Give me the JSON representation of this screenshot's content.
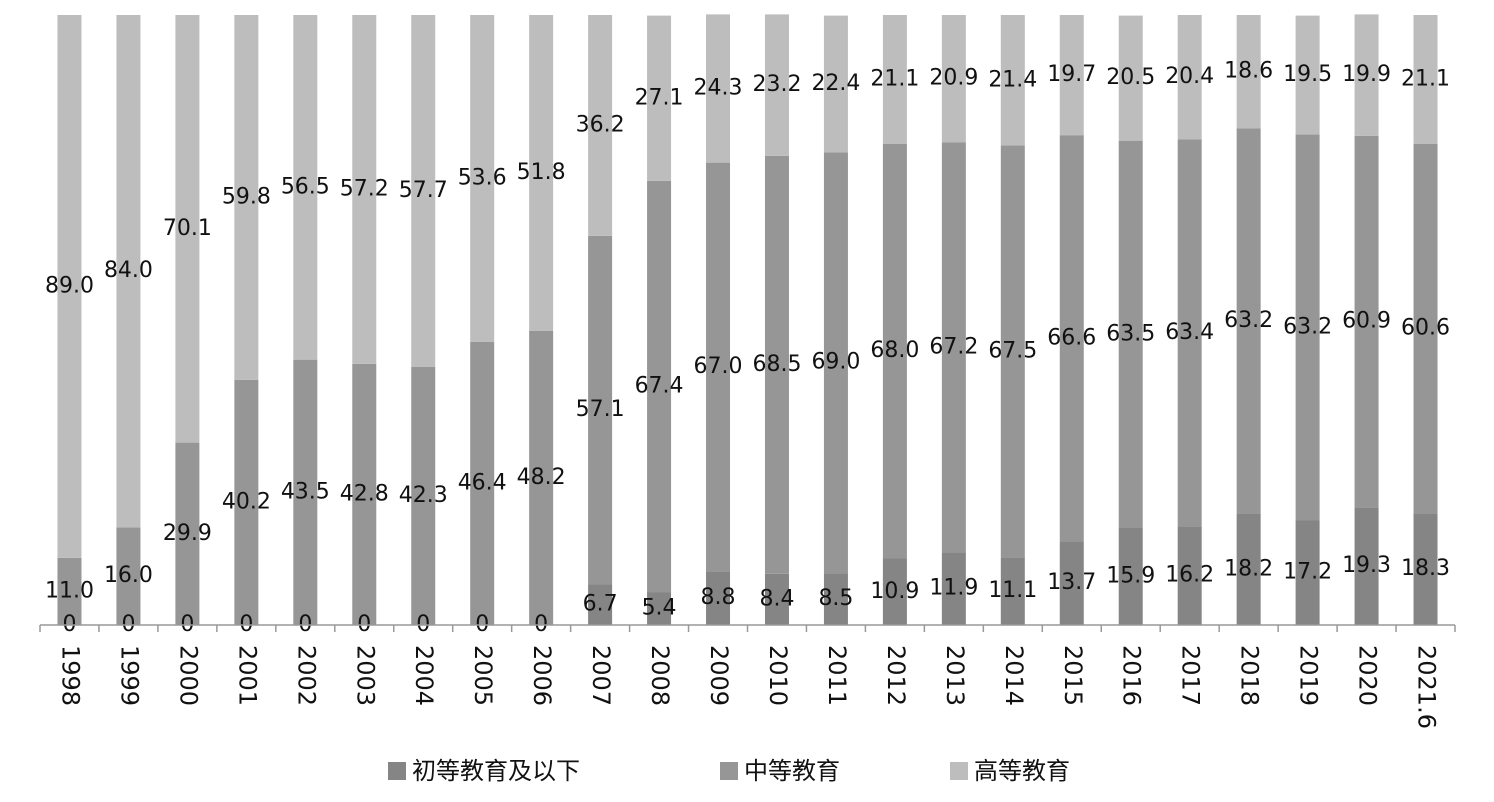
{
  "chart_data": {
    "type": "stacked-bar",
    "categories": [
      "1998",
      "1999",
      "2000",
      "2001",
      "2002",
      "2003",
      "2004",
      "2005",
      "2006",
      "2007",
      "2008",
      "2009",
      "2010",
      "2011",
      "2012",
      "2013",
      "2014",
      "2015",
      "2016",
      "2017",
      "2018",
      "2019",
      "2020",
      "2021.6"
    ],
    "ylim": [
      0,
      100
    ],
    "legend": "bottom",
    "series": [
      {
        "name": "初等教育及以下",
        "color": "#858585",
        "values": [
          0,
          0,
          0,
          0,
          0,
          0,
          0,
          0,
          0,
          6.7,
          5.4,
          8.8,
          8.4,
          8.5,
          10.9,
          11.9,
          11.1,
          13.7,
          15.9,
          16.2,
          18.2,
          17.2,
          19.3,
          18.3
        ]
      },
      {
        "name": "中等教育",
        "color": "#969696",
        "values": [
          11.0,
          16.0,
          29.9,
          40.2,
          43.5,
          42.8,
          42.3,
          46.4,
          48.2,
          57.1,
          67.4,
          67.0,
          68.5,
          69.0,
          68.0,
          67.2,
          67.5,
          66.6,
          63.5,
          63.4,
          63.2,
          63.2,
          60.9,
          60.6
        ],
        "value_labels": [
          "11.0",
          "16.0",
          "29.9",
          "40.2",
          "43.5",
          "42.8",
          "42.3",
          "46.4",
          "48.2",
          "57.1",
          "67.4",
          "67.0",
          "68.5",
          "69.0",
          "68.0",
          "67.2",
          "67.5",
          "66.6",
          "63.5",
          "63.4",
          "63.2",
          "63.2",
          "60.9",
          "60.6"
        ]
      },
      {
        "name": "高等教育",
        "color": "#bdbdbd",
        "values": [
          89.0,
          84.0,
          70.1,
          59.8,
          56.5,
          57.2,
          57.7,
          53.6,
          51.8,
          36.2,
          27.1,
          24.3,
          23.2,
          22.4,
          21.1,
          20.9,
          21.4,
          19.7,
          20.5,
          20.4,
          18.6,
          19.5,
          19.9,
          21.1
        ],
        "value_labels": [
          "89.0",
          "84.0",
          "70.1",
          "59.8",
          "56.5",
          "57.2",
          "57.7",
          "53.6",
          "51.8",
          "36.2",
          "27.1",
          "24.3",
          "23.2",
          "22.4",
          "21.1",
          "20.9",
          "21.4",
          "19.7",
          "20.5",
          "20.4",
          "18.6",
          "19.5",
          "19.9",
          "21.1"
        ]
      }
    ]
  }
}
